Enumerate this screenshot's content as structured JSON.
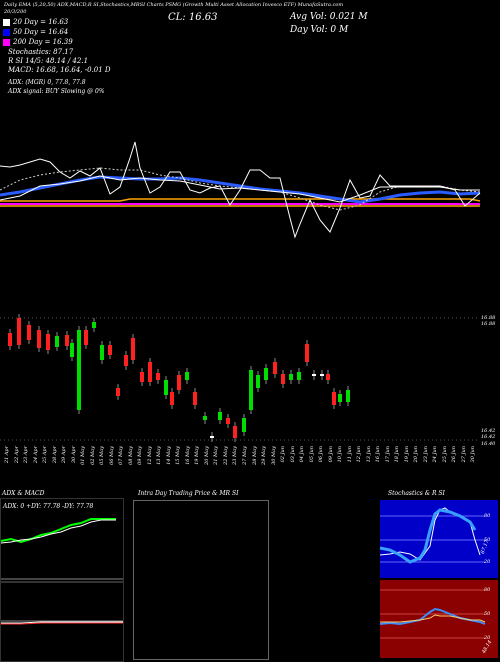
{
  "header": {
    "line1": "Daily EMA (5,20,50) ADX,MACD,R SI,Stochastics,MRSI Charts PSMG (Growth Multi Asset Allocation Invesco ETF) MunafaSutra.com",
    "date_range": "20/3/200",
    "cl_label": "CL: 16.63",
    "avg_vol": "Avg Vol: 0.021 M",
    "day_vol": "Day Vol: 0   M"
  },
  "legend": {
    "ema20": "20  Day = 16.63",
    "ema50": "50  Day = 16.64",
    "ema200": "200  Day = 16.39",
    "stochastics": "Stochastics: 87.17",
    "r_si": "R                     SI 14/5: 48.14 / 42.1",
    "macd": "MACD: 16.68, 16.64, -0.01 D",
    "adx": "ADX:                                (MGR) 0, 77.8, 77.8",
    "adx_signal": "ADX  signal:                                    BUY Slowing @ 0%",
    "colors": {
      "ema20": "#ffffff",
      "ema50": "#0000ff",
      "ema200": "#ff00ff"
    }
  },
  "price_axis": {
    "top_label": "16.88",
    "top_label2": "16.88",
    "low1": "16.42",
    "low2": "16.42",
    "low3": "16.40"
  },
  "dates": [
    "21 Apr",
    "22 Apr",
    "23 Apr",
    "24 Apr",
    "25 Apr",
    "28 Apr",
    "29 Apr",
    "30 Apr",
    "01 May",
    "02 May",
    "05 May",
    "06 May",
    "07 May",
    "08 May",
    "09 May",
    "12 May",
    "13 May",
    "14 May",
    "15 May",
    "16 May",
    "19 May",
    "20 May",
    "21 May",
    "22 May",
    "23 May",
    "27 May",
    "28 May",
    "29 May",
    "30 May",
    "02 Jun",
    "03 Jun",
    "04 Jun",
    "05 Jun",
    "06 Jun",
    "09 Jun",
    "10 Jun",
    "11 Jun",
    "12 Jun",
    "13 Jun",
    "16 Jun",
    "17 Jun",
    "18 Jun",
    "19 Jun",
    "20 Jun",
    "23 Jun",
    "24 Jun",
    "25 Jun",
    "26 Jun",
    "27 Jun",
    "30 Jun"
  ],
  "panels": {
    "adx_title": "ADX  & MACD",
    "adx_readout": "ADX: 0   +DY: 77.78   -DY: 77.78",
    "intraday_title": "Intra Day Trading Price  & MR                           SI",
    "stoch_title": "Stochastics & R                      SI",
    "stoch_levels": [
      "80",
      "50",
      "20"
    ],
    "stoch_value": "87.17",
    "rsi_levels": [
      "80",
      "50",
      "20"
    ],
    "rsi_value": "48.14"
  }
}
